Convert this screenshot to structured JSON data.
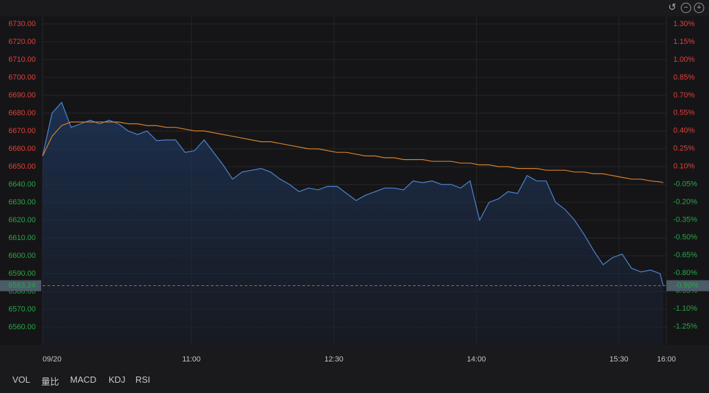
{
  "chart_data": {
    "type": "line",
    "x": [
      566,
      572,
      578,
      584,
      590,
      596,
      602,
      608,
      614,
      620,
      626,
      632,
      638,
      644,
      650,
      656,
      662,
      668,
      674,
      680,
      686,
      692,
      698,
      704,
      710,
      716,
      722,
      728,
      734,
      740,
      746,
      752,
      758,
      764,
      770,
      776,
      782,
      788,
      794,
      800,
      806,
      812,
      818,
      824,
      830,
      836,
      842,
      848,
      854,
      860,
      866,
      872,
      878,
      884,
      890,
      896,
      902,
      908,
      914,
      920,
      926,
      932,
      938,
      944,
      950,
      956,
      958
    ],
    "xlim": [
      566,
      960
    ],
    "xticks": [
      {
        "value": 566,
        "label": "09/20"
      },
      {
        "value": 660,
        "label": "11:00"
      },
      {
        "value": 750,
        "label": "12:30"
      },
      {
        "value": 840,
        "label": "14:00"
      },
      {
        "value": 930,
        "label": "15:30"
      },
      {
        "value": 960,
        "label": "16:00"
      }
    ],
    "series": [
      {
        "color": "#4f86d6",
        "values": [
          6656,
          6680,
          6686,
          6672,
          6674,
          6676,
          6674,
          6676,
          6674,
          6670,
          6668,
          6670,
          6664.6,
          6665,
          6665,
          6658,
          6659,
          6665,
          6658,
          6651,
          6643,
          6647,
          6648,
          6649,
          6647,
          6643,
          6640,
          6636,
          6638,
          6637,
          6639,
          6639,
          6635,
          6631,
          6634,
          6636,
          6638,
          6638,
          6637,
          6642,
          6641,
          6642,
          6640,
          6640,
          6638,
          6642,
          6620,
          6630,
          6632,
          6636,
          6635,
          6645,
          6642,
          6642,
          6630,
          6626,
          6620,
          6612,
          6603,
          6595,
          6599,
          6601,
          6593,
          6591,
          6592,
          6590,
          6583.24
        ]
      },
      {
        "color": "#d9822b",
        "values": [
          6656,
          6667,
          6673,
          6675,
          6675,
          6675,
          6675,
          6675,
          6675,
          6674,
          6674,
          6673,
          6673,
          6672,
          6672,
          6671,
          6670,
          6670,
          6669,
          6668,
          6667,
          6666,
          6665,
          6664,
          6664,
          6663,
          6662,
          6661,
          6660,
          6660,
          6659,
          6658,
          6658,
          6657,
          6656,
          6656,
          6655,
          6655,
          6654,
          6654,
          6654,
          6653,
          6653,
          6653,
          6652,
          6652,
          6651,
          6651,
          6650,
          6650,
          6649,
          6649,
          6649,
          6648,
          6648,
          6648,
          6647,
          6647,
          6646,
          6646,
          6645,
          6644,
          6643,
          6643,
          6642,
          6641.5,
          6641
        ]
      }
    ],
    "ylim": [
      6550,
      6734.2
    ],
    "yticks": [
      {
        "value": 6730,
        "label": "6730.00"
      },
      {
        "value": 6720,
        "label": "6720.00"
      },
      {
        "value": 6710,
        "label": "6710.00"
      },
      {
        "value": 6700,
        "label": "6700.00"
      },
      {
        "value": 6690,
        "label": "6690.00"
      },
      {
        "value": 6680,
        "label": "6680.00"
      },
      {
        "value": 6670,
        "label": "6670.00"
      },
      {
        "value": 6660,
        "label": "6660.00"
      },
      {
        "value": 6650,
        "label": "6650.00"
      },
      {
        "value": 6640,
        "label": "6640.00"
      },
      {
        "value": 6630,
        "label": "6630.00"
      },
      {
        "value": 6620,
        "label": "6620.00"
      },
      {
        "value": 6610,
        "label": "6610.00"
      },
      {
        "value": 6600,
        "label": "6600.00"
      },
      {
        "value": 6590,
        "label": "6590.00"
      },
      {
        "value": 6580,
        "label": "6580.00"
      },
      {
        "value": 6570,
        "label": "6570.00"
      },
      {
        "value": 6560,
        "label": "6560.00"
      }
    ],
    "y2lim": [
      -1.407,
      1.365
    ],
    "y2ticks": [
      {
        "value": 1.3,
        "label": "1.30%"
      },
      {
        "value": 1.15,
        "label": "1.15%"
      },
      {
        "value": 1,
        "label": "1.00%"
      },
      {
        "value": 0.85,
        "label": "0.85%"
      },
      {
        "value": 0.7,
        "label": "0.70%"
      },
      {
        "value": 0.55,
        "label": "0.55%"
      },
      {
        "value": 0.4,
        "label": "0.40%"
      },
      {
        "value": 0.25,
        "label": "0.25%"
      },
      {
        "value": 0.1,
        "label": "0.10%"
      },
      {
        "value": -0.05,
        "label": "-0.05%"
      },
      {
        "value": -0.2,
        "label": "-0.20%"
      },
      {
        "value": -0.35,
        "label": "-0.35%"
      },
      {
        "value": -0.5,
        "label": "-0.50%"
      },
      {
        "value": -0.65,
        "label": "-0.65%"
      },
      {
        "value": -0.8,
        "label": "-0.80%"
      },
      {
        "value": -0.95,
        "label": "-0.95%"
      },
      {
        "value": -1.1,
        "label": "-1.10%"
      },
      {
        "value": -1.25,
        "label": "-1.25%"
      }
    ],
    "last_price": {
      "value": 6583.24,
      "label": "6583.24"
    },
    "last_change": {
      "value": -0.9,
      "label": "-0.90%"
    },
    "up_color": "#e0403a",
    "down_color": "#27a845",
    "grid": true
  },
  "tabs": [
    "VOL",
    "量比",
    "MACD",
    "KDJ",
    "RSI"
  ]
}
